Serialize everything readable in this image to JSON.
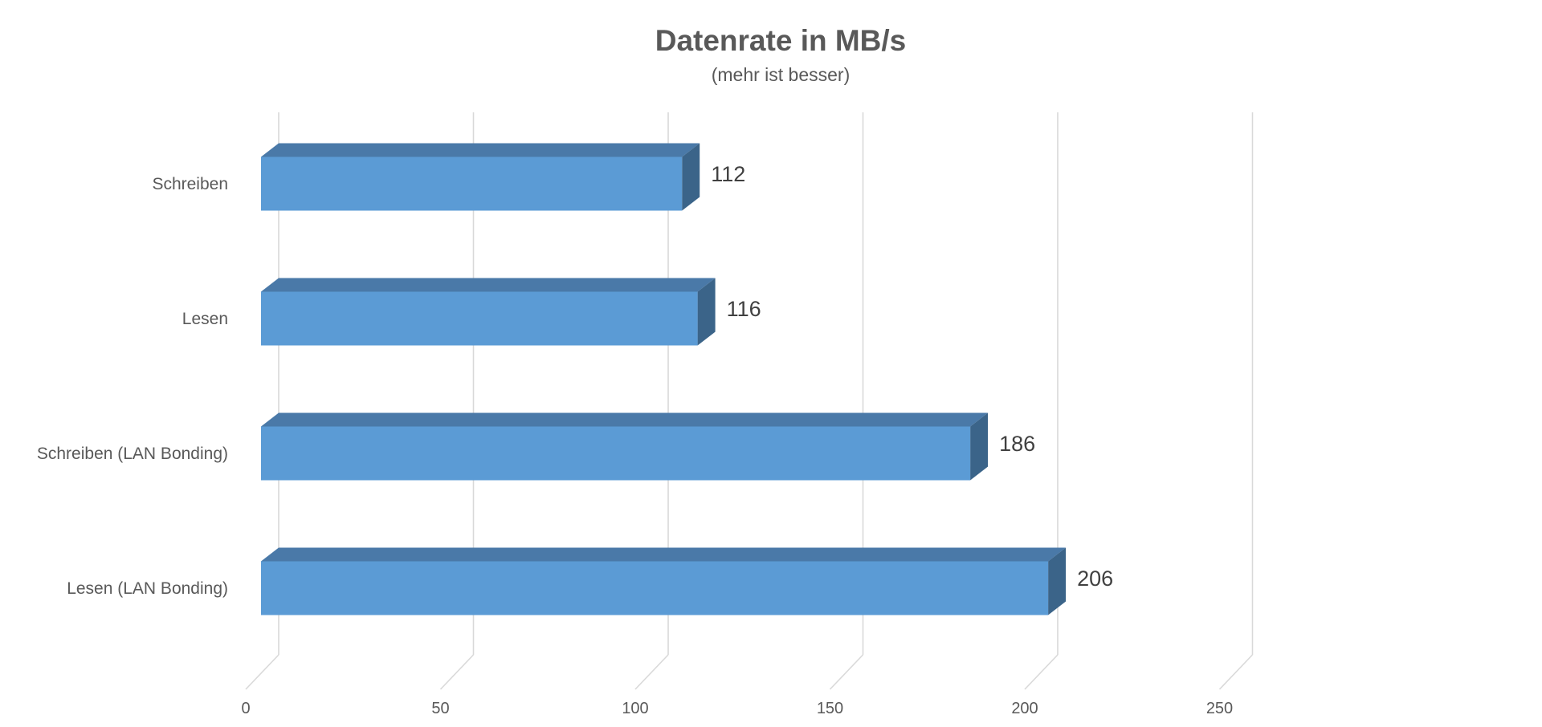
{
  "chart_data": {
    "type": "bar",
    "orientation": "horizontal",
    "title": "Datenrate in MB/s",
    "subtitle": "(mehr ist besser)",
    "xlabel": "",
    "ylabel": "",
    "categories": [
      "Schreiben",
      "Lesen",
      "Schreiben (LAN Bonding)",
      "Lesen (LAN Bonding)"
    ],
    "values": [
      112,
      116,
      186,
      206
    ],
    "data_labels": [
      "112",
      "116",
      "186",
      "206"
    ],
    "xlim": [
      0,
      250
    ],
    "x_ticks": [
      0,
      50,
      100,
      150,
      200,
      250
    ],
    "x_tick_labels": [
      "0",
      "50",
      "100",
      "150",
      "200",
      "250"
    ],
    "grid": "vertical",
    "legend": "none",
    "style": "3d",
    "colors": {
      "bar_front": "#5b9bd5",
      "bar_top": "#4a79a8",
      "bar_side": "#3b6489",
      "grid": "#d9d9d9",
      "text": "#595959"
    }
  }
}
